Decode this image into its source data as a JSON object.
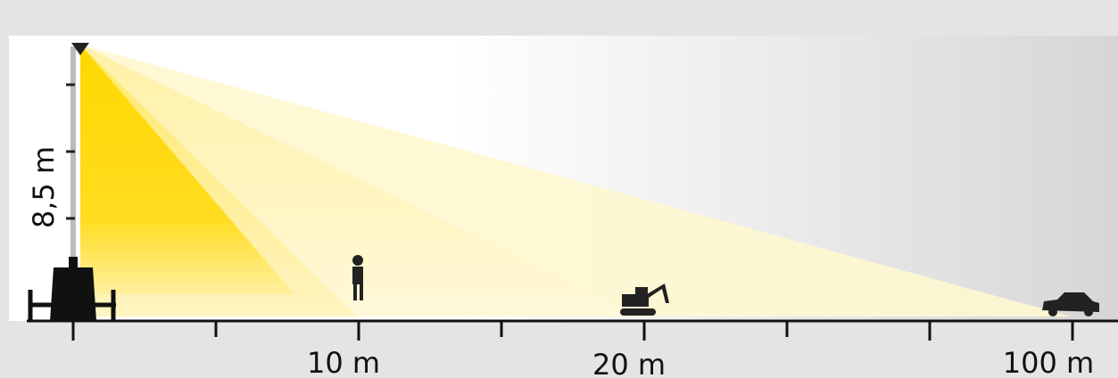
{
  "height_label": "8,5 m",
  "distance_labels": [
    "10 m",
    "20 m",
    "100 m"
  ]
}
